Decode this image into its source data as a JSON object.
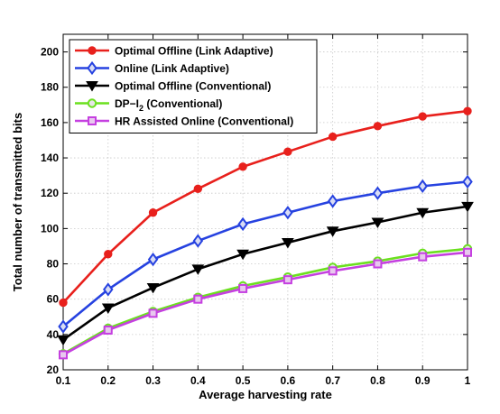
{
  "chart_data": {
    "type": "line",
    "xlabel": "Average harvesting rate",
    "ylabel": "Total number of transmitted bits",
    "xlim": [
      0.1,
      1
    ],
    "ylim": [
      20,
      210
    ],
    "grid": true,
    "legend_position": "top-left",
    "x": [
      0.1,
      0.2,
      0.3,
      0.4,
      0.5,
      0.6,
      0.7,
      0.8,
      0.9,
      1
    ],
    "x_tick_labels": [
      "0.1",
      "0.2",
      "0.3",
      "0.4",
      "0.5",
      "0.6",
      "0.7",
      "0.8",
      "0.9",
      "1"
    ],
    "y_ticks": [
      20,
      40,
      60,
      80,
      100,
      120,
      140,
      160,
      180,
      200
    ],
    "y_tick_labels": [
      "20",
      "40",
      "60",
      "80",
      "100",
      "120",
      "140",
      "160",
      "180",
      "200"
    ],
    "series": [
      {
        "name": "Optimal Offline (Link Adaptive)",
        "color": "#e8201c",
        "marker": "circle",
        "values": [
          58,
          85.5,
          109,
          122.5,
          135,
          143.5,
          152,
          158,
          163.5,
          166.5
        ]
      },
      {
        "name": "Online (Link Adaptive)",
        "color": "#2642e0",
        "marker": "diamond",
        "values": [
          44.5,
          65.5,
          82.5,
          93,
          102.5,
          109,
          115.5,
          120,
          124,
          126.5
        ]
      },
      {
        "name": "Optimal Offline (Conventional)",
        "color": "#000000",
        "marker": "triangle-down",
        "values": [
          37,
          55,
          66.5,
          77,
          85.5,
          92,
          98.5,
          103.5,
          109,
          112.5
        ]
      },
      {
        "name": "DP−I",
        "name_subscript": "2",
        "name_suffix": " (Conventional)",
        "color": "#6be01f",
        "marker": "circle-open",
        "values": [
          29,
          43.5,
          53,
          61,
          67.5,
          72.5,
          78,
          81.5,
          86,
          88.5
        ]
      },
      {
        "name": "HR Assisted Online (Conventional)",
        "color": "#c540e0",
        "marker": "square",
        "values": [
          28.5,
          42.5,
          52,
          60,
          66,
          71,
          76,
          80,
          84,
          86.5
        ]
      }
    ]
  }
}
